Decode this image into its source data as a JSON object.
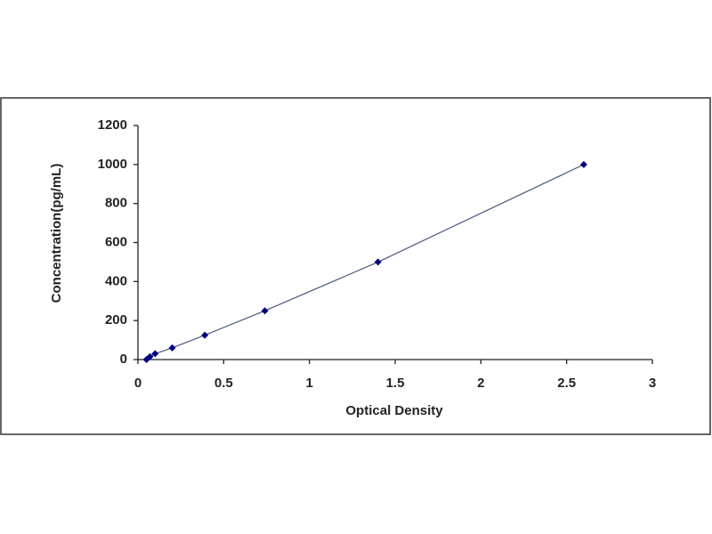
{
  "chart_data": {
    "type": "scatter",
    "x_label": "Optical Density",
    "y_label": "Concentration(pg/mL)",
    "x": [
      0.05,
      0.07,
      0.1,
      0.2,
      0.39,
      0.74,
      1.4,
      2.6
    ],
    "values": [
      0,
      15,
      30,
      60,
      125,
      250,
      500,
      1000
    ],
    "color": "#000080",
    "line_color": "#4a5a7a",
    "xlim": [
      0,
      3
    ],
    "xticks": [
      0,
      0.5,
      1,
      1.5,
      2,
      2.5,
      3
    ],
    "ylim": [
      0,
      1200
    ],
    "yticks": [
      0,
      200,
      400,
      600,
      800,
      1000,
      1200
    ]
  }
}
